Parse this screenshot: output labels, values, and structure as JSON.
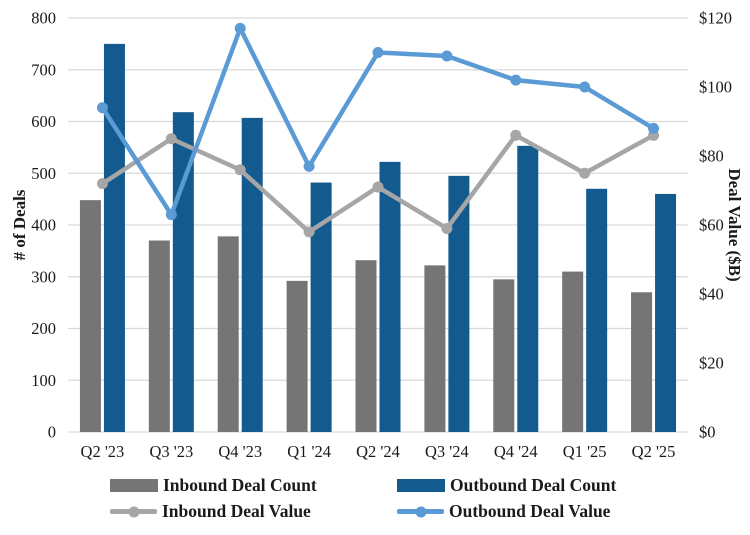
{
  "chart_data": {
    "type": "bar",
    "subtype": "combo-bar-line-dual-axis",
    "title": "",
    "categories": [
      "Q2 '23",
      "Q3 '23",
      "Q4 '23",
      "Q1 '24",
      "Q2 '24",
      "Q3 '24",
      "Q4 '24",
      "Q1 '25",
      "Q2 '25"
    ],
    "series": [
      {
        "name": "Inbound Deal Count",
        "type": "bar",
        "axis": "left",
        "color": "#757575",
        "values": [
          448,
          370,
          378,
          292,
          332,
          322,
          295,
          310,
          270
        ]
      },
      {
        "name": "Outbound Deal Count",
        "type": "bar",
        "axis": "left",
        "color": "#135A8E",
        "values": [
          750,
          618,
          607,
          482,
          522,
          495,
          553,
          470,
          460
        ]
      },
      {
        "name": "Inbound Deal Value",
        "type": "line",
        "axis": "right",
        "color": "#A6A6A6",
        "values": [
          72,
          85,
          76,
          58,
          71,
          59,
          86,
          75,
          86
        ]
      },
      {
        "name": "Outbound Deal Value",
        "type": "line",
        "axis": "right",
        "color": "#5B9BD5",
        "values": [
          94,
          63,
          117,
          77,
          110,
          109,
          102,
          100,
          88
        ]
      }
    ],
    "left_axis": {
      "label": "# of Deals",
      "min": 0,
      "max": 800,
      "step": 100,
      "tick_labels": [
        "0",
        "100",
        "200",
        "300",
        "400",
        "500",
        "600",
        "700",
        "800"
      ]
    },
    "right_axis": {
      "label": "Deal Value ($B)",
      "min": 0,
      "max": 120,
      "step": 20,
      "tick_labels": [
        "$0",
        "$20",
        "$40",
        "$60",
        "$80",
        "$100",
        "$120"
      ]
    },
    "grid": true,
    "legend_position": "bottom",
    "colors": {
      "gridline": "#D9D9D9",
      "text": "#1a1a1a",
      "background": "#ffffff"
    }
  }
}
